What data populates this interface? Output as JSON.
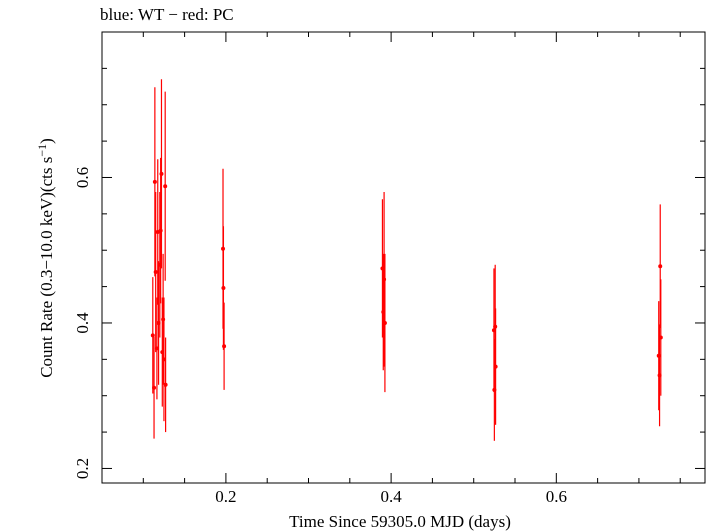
{
  "chart_data": {
    "type": "scatter",
    "title": "blue: WT − red: PC",
    "xlabel": "Time Since 59305.0 MJD (days)",
    "ylabel": "Count Rate (0.3−10.0 keV)(cts s",
    "ylabel_sup": "−1",
    "ylabel_tail": ")",
    "xlim": [
      0.05,
      0.78
    ],
    "ylim": [
      0.18,
      0.8
    ],
    "x_ticks": [
      0.2,
      0.4,
      0.6
    ],
    "x_tick_labels": [
      "0.2",
      "0.4",
      "0.6"
    ],
    "y_ticks": [
      0.2,
      0.4,
      0.6
    ],
    "y_tick_labels": [
      "0.2",
      "0.4",
      "0.6"
    ],
    "x_minor_step": 0.05,
    "y_minor_step": 0.05,
    "grid": false,
    "series": [
      {
        "name": "WT",
        "color": "#0000ff",
        "points": []
      },
      {
        "name": "PC",
        "color": "#ff0000",
        "points": [
          {
            "x": 0.1115,
            "y": 0.383,
            "yerr": 0.08
          },
          {
            "x": 0.113,
            "y": 0.311,
            "yerr": 0.07
          },
          {
            "x": 0.114,
            "y": 0.594,
            "yerr": 0.13
          },
          {
            "x": 0.115,
            "y": 0.47,
            "yerr": 0.11
          },
          {
            "x": 0.1165,
            "y": 0.365,
            "yerr": 0.07
          },
          {
            "x": 0.1175,
            "y": 0.525,
            "yerr": 0.1
          },
          {
            "x": 0.1185,
            "y": 0.4,
            "yerr": 0.085
          },
          {
            "x": 0.12,
            "y": 0.48,
            "yerr": 0.1
          },
          {
            "x": 0.121,
            "y": 0.527,
            "yerr": 0.1
          },
          {
            "x": 0.122,
            "y": 0.605,
            "yerr": 0.13
          },
          {
            "x": 0.123,
            "y": 0.36,
            "yerr": 0.075
          },
          {
            "x": 0.124,
            "y": 0.405,
            "yerr": 0.09
          },
          {
            "x": 0.125,
            "y": 0.35,
            "yerr": 0.085
          },
          {
            "x": 0.1265,
            "y": 0.588,
            "yerr": 0.13
          },
          {
            "x": 0.127,
            "y": 0.315,
            "yerr": 0.065
          },
          {
            "x": 0.1965,
            "y": 0.502,
            "yerr": 0.11
          },
          {
            "x": 0.197,
            "y": 0.448,
            "yerr": 0.085
          },
          {
            "x": 0.1978,
            "y": 0.368,
            "yerr": 0.06
          },
          {
            "x": 0.3895,
            "y": 0.475,
            "yerr": 0.095
          },
          {
            "x": 0.3905,
            "y": 0.415,
            "yerr": 0.08
          },
          {
            "x": 0.3915,
            "y": 0.46,
            "yerr": 0.12
          },
          {
            "x": 0.3925,
            "y": 0.4,
            "yerr": 0.095
          },
          {
            "x": 0.5245,
            "y": 0.39,
            "yerr": 0.085
          },
          {
            "x": 0.525,
            "y": 0.308,
            "yerr": 0.07
          },
          {
            "x": 0.526,
            "y": 0.395,
            "yerr": 0.085
          },
          {
            "x": 0.5265,
            "y": 0.34,
            "yerr": 0.08
          },
          {
            "x": 0.724,
            "y": 0.355,
            "yerr": 0.075
          },
          {
            "x": 0.725,
            "y": 0.328,
            "yerr": 0.07
          },
          {
            "x": 0.7258,
            "y": 0.478,
            "yerr": 0.085
          },
          {
            "x": 0.7265,
            "y": 0.38,
            "yerr": 0.08
          }
        ]
      }
    ]
  }
}
